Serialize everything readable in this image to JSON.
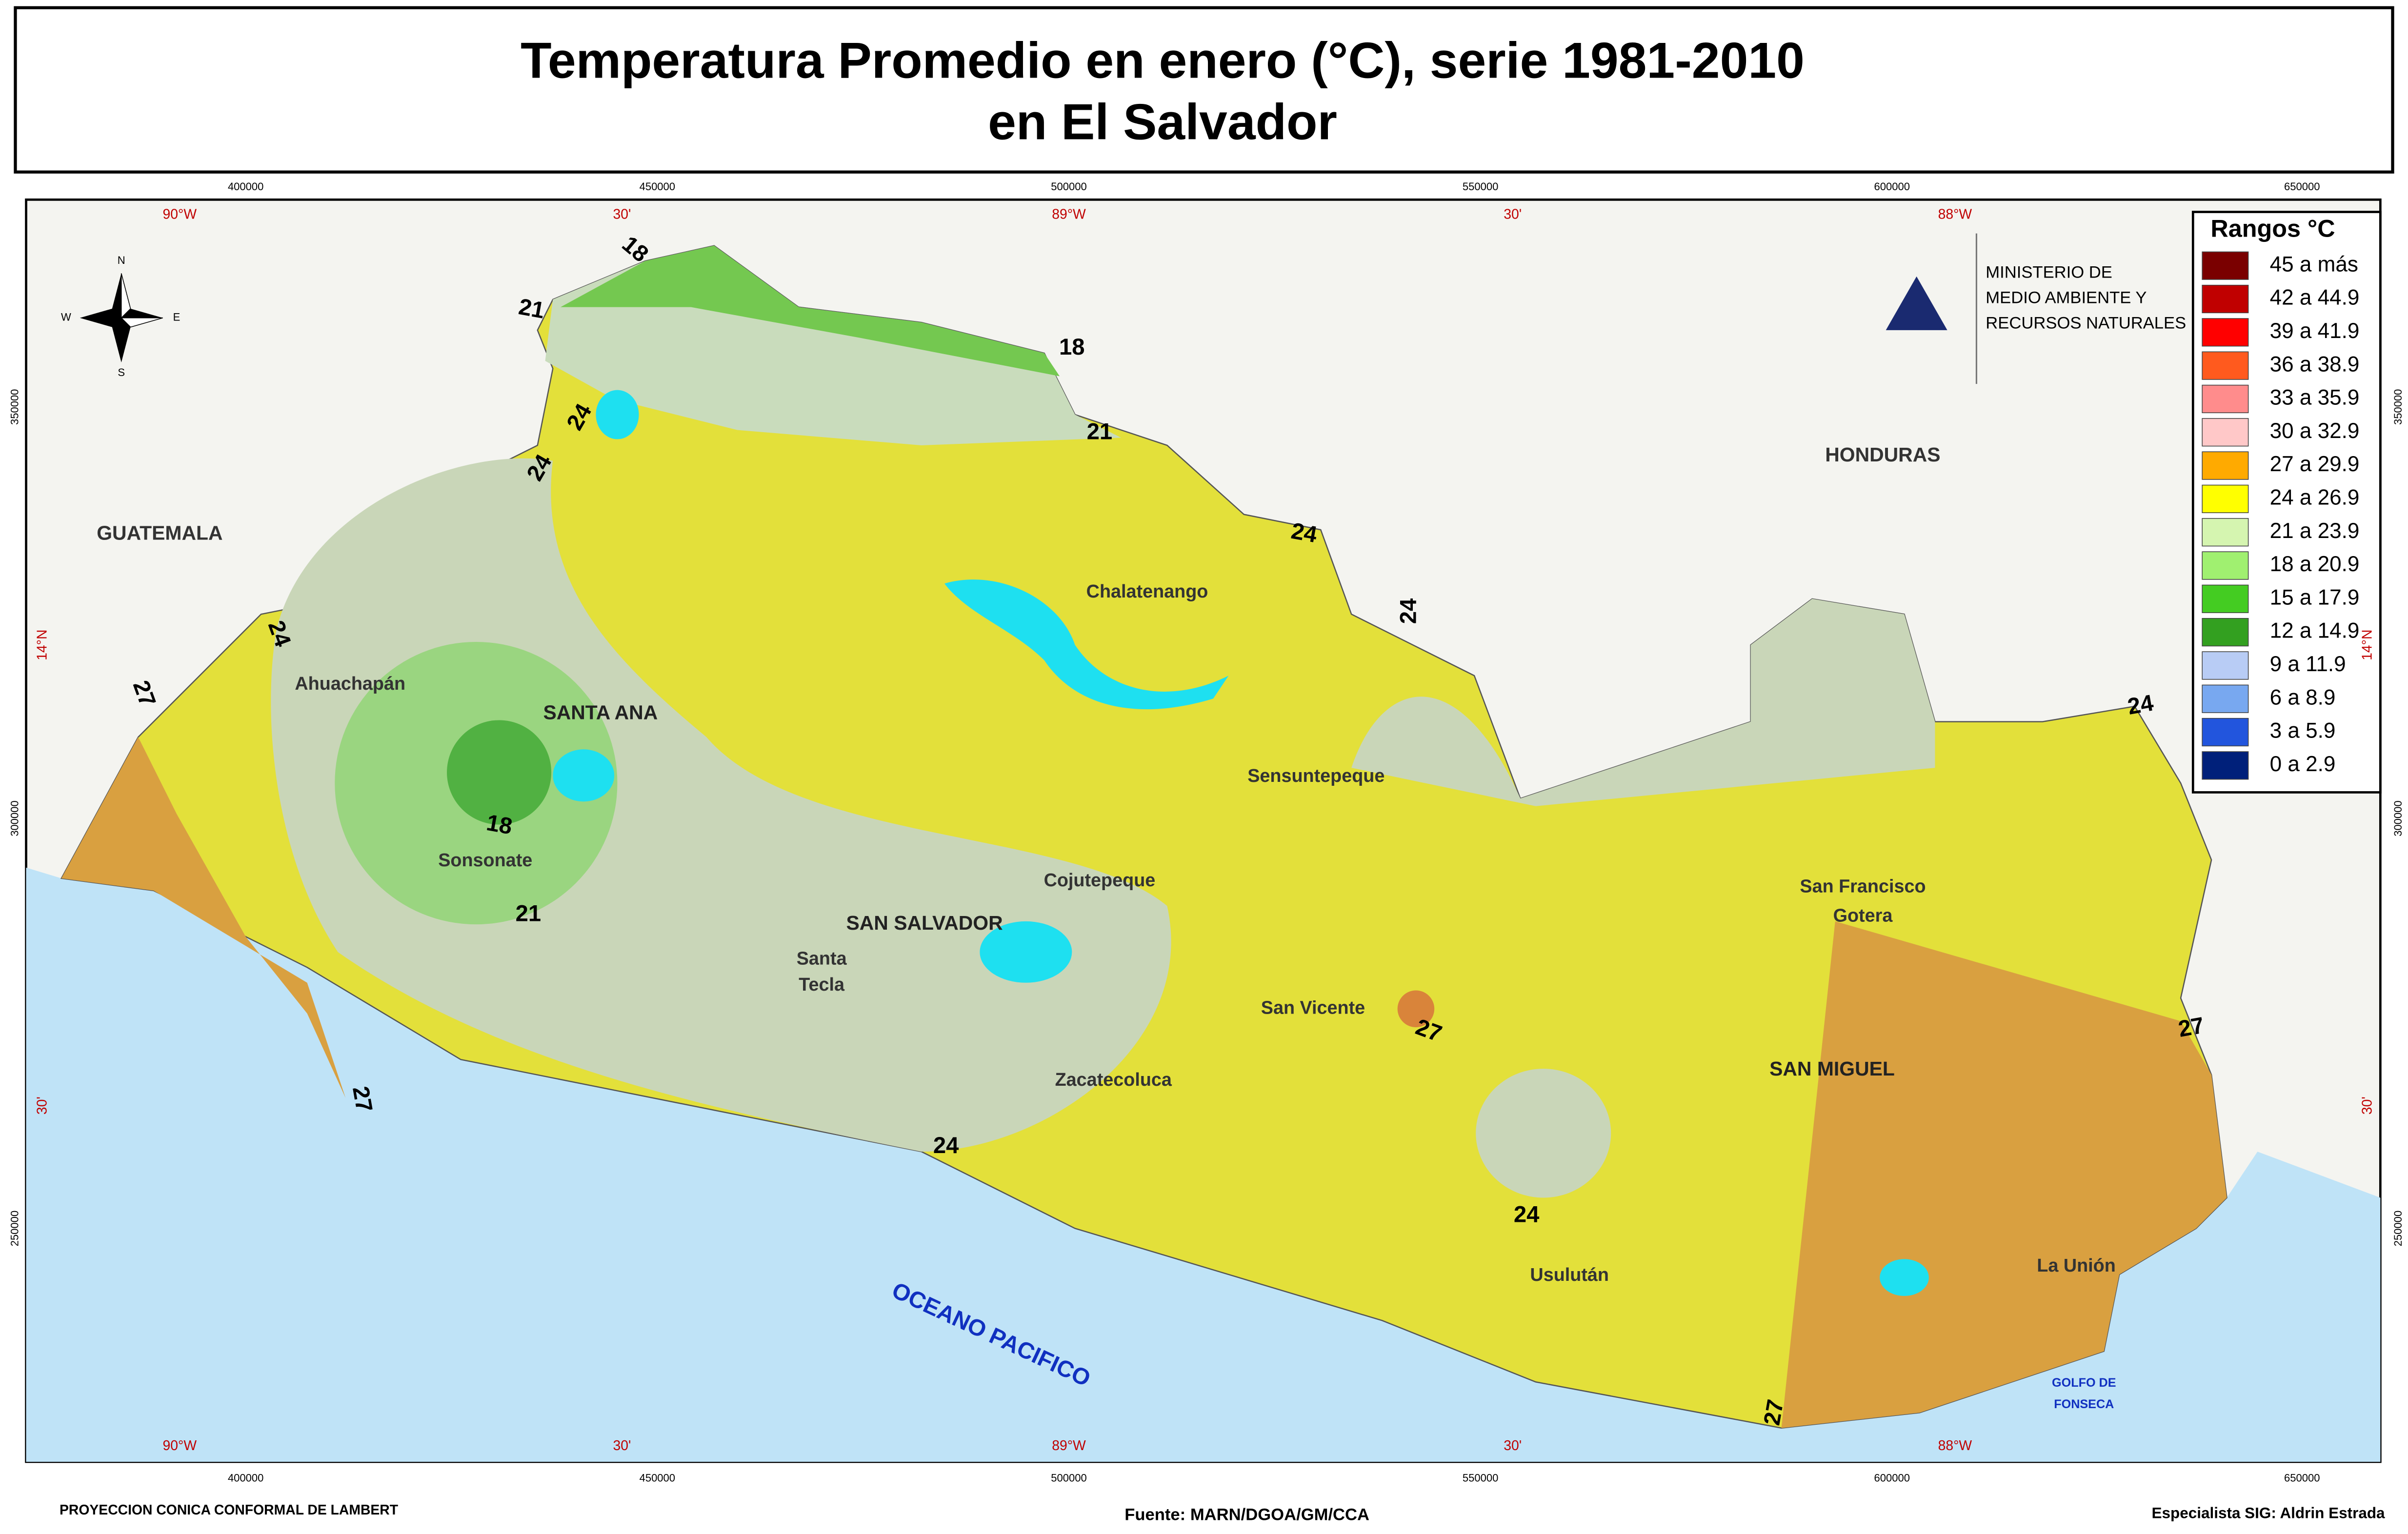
{
  "title": [
    "Temperatura Promedio en enero (°C), serie 1981-2010",
    "en El Salvador"
  ],
  "eastings": [
    "400000",
    "450000",
    "500000",
    "550000",
    "600000",
    "650000"
  ],
  "longitudes": [
    "90°W",
    "30'",
    "89°W",
    "30'",
    "88°W"
  ],
  "northings": [
    "350000",
    "300000",
    "250000"
  ],
  "latitudes": [
    "14°N",
    "30'"
  ],
  "compass": [
    "N",
    "S",
    "E",
    "W"
  ],
  "legend": {
    "title": "Rangos °C",
    "items": [
      {
        "label": "45 a más",
        "color": "#7a0000"
      },
      {
        "label": "42 a 44.9",
        "color": "#c00000"
      },
      {
        "label": "39 a 41.9",
        "color": "#ff0000"
      },
      {
        "label": "36 a 38.9",
        "color": "#ff5a1e"
      },
      {
        "label": "33 a 35.9",
        "color": "#ff8c8c"
      },
      {
        "label": "30 a 32.9",
        "color": "#ffc8c8"
      },
      {
        "label": "27 a 29.9",
        "color": "#ffaa00"
      },
      {
        "label": "24 a 26.9",
        "color": "#ffff00"
      },
      {
        "label": "21 a 23.9",
        "color": "#d5f5b0"
      },
      {
        "label": "18 a 20.9",
        "color": "#a0f070"
      },
      {
        "label": "15 a 17.9",
        "color": "#44cc22"
      },
      {
        "label": "12 a 14.9",
        "color": "#33a020"
      },
      {
        "label": "9 a 11.9",
        "color": "#b8ccf5"
      },
      {
        "label": "6 a 8.9",
        "color": "#78a8f0"
      },
      {
        "label": "3 a 5.9",
        "color": "#2255dd"
      },
      {
        "label": "0 a 2.9",
        "color": "#00207a"
      }
    ]
  },
  "ministry": [
    "MINISTERIO DE",
    "MEDIO AMBIENTE Y",
    "RECURSOS NATURALES"
  ],
  "places": [
    "GUATEMALA",
    "HONDURAS",
    "Chalatenango",
    "Ahuachapán",
    "SANTA ANA",
    "Sensuntepeque",
    "Sonsonate",
    "Cojutepeque",
    "SAN SALVADOR",
    "Santa",
    "Tecla",
    "San Francisco",
    "Gotera",
    "San Vicente",
    "SAN MIGUEL",
    "Zacatecoluca",
    "Usulután",
    "La Unión"
  ],
  "ocean": "OCEANO PACIFICO",
  "gulf": [
    "GOLFO DE",
    "FONSECA"
  ],
  "isotherm_labels": [
    "18",
    "21",
    "18",
    "24",
    "21",
    "24",
    "24",
    "24",
    "24",
    "27",
    "24",
    "18",
    "21",
    "27",
    "27",
    "27",
    "24",
    "24",
    "27"
  ],
  "footer": [
    "PROYECCION CONICA CONFORMAL DE LAMBERT",
    "Fuente: MARN/DGOA/GM/CCA",
    "Especialista SIG: Aldrin Estrada"
  ]
}
